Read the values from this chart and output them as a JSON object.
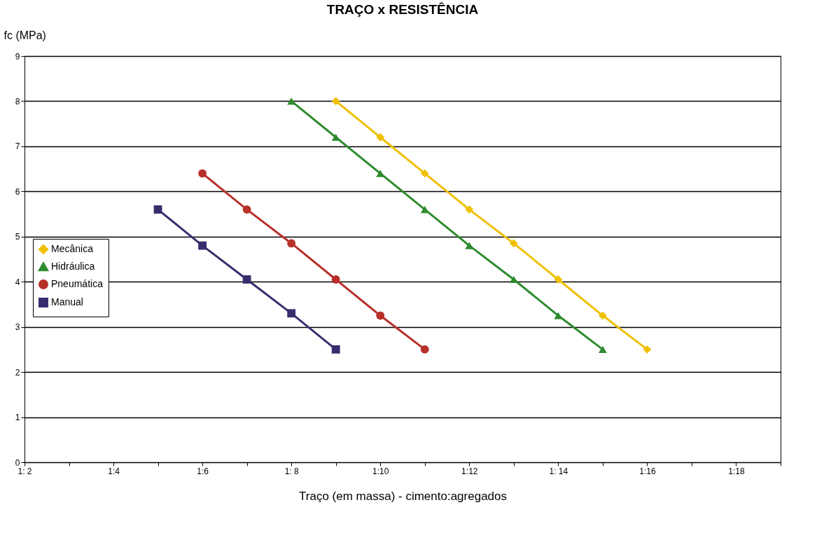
{
  "chart_data": {
    "type": "line",
    "title": "TRAÇO x RESISTÊNCIA",
    "xlabel": "Traço (em massa) - cimento:agregados",
    "ylabel": "fc (MPa)",
    "categories": [
      "1: 2",
      null,
      "1:4",
      null,
      "1:6",
      null,
      "1: 8",
      null,
      "1:10",
      null,
      "1:12",
      null,
      "1: 14",
      null,
      "1:16",
      null,
      "1:18",
      null
    ],
    "ylim": [
      0,
      9
    ],
    "yticks": [
      0,
      1,
      2,
      3,
      4,
      5,
      6,
      7,
      8,
      9
    ],
    "grid": "y",
    "legend": "left",
    "series": [
      {
        "name": "Mecânica",
        "color": "#f0c000",
        "marker": "diamond",
        "values": [
          null,
          null,
          null,
          null,
          null,
          null,
          null,
          8.0,
          7.2,
          6.4,
          5.6,
          4.85,
          4.05,
          3.25,
          2.5,
          null,
          null,
          null
        ]
      },
      {
        "name": "Hidráulica",
        "color": "#2e8b2e",
        "marker": "triangle",
        "values": [
          null,
          null,
          null,
          null,
          null,
          null,
          8.0,
          7.2,
          6.4,
          5.6,
          4.8,
          4.05,
          3.25,
          2.5,
          null,
          null,
          null,
          null
        ]
      },
      {
        "name": "Pneumática",
        "color": "#b8302a",
        "marker": "circle",
        "values": [
          null,
          null,
          null,
          null,
          6.4,
          5.6,
          4.85,
          4.05,
          3.25,
          2.5,
          null,
          null,
          null,
          null,
          null,
          null,
          null,
          null
        ]
      },
      {
        "name": "Manual",
        "color": "#3a2d6e",
        "marker": "square",
        "values": [
          null,
          null,
          null,
          5.6,
          4.8,
          4.05,
          3.3,
          2.5,
          null,
          null,
          null,
          null,
          null,
          null,
          null,
          null,
          null,
          null
        ]
      }
    ]
  }
}
